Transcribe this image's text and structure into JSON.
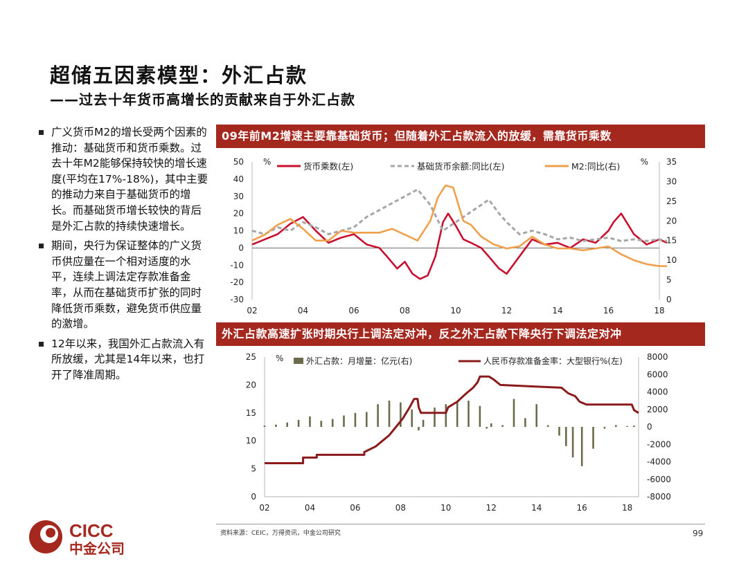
{
  "title": "超储五因素模型：外汇占款",
  "subtitle": "——过去十年货币高增长的贡献来自于外汇占款",
  "bullets": [
    "广义货币M2的增长受两个因素的推动：基础货币和货币乘数。过去十年M2能够保持较快的增长速度(平均在17%-18%)，其中主要的推动力来自于基础货币的增长。而基础货币增长较快的背后是外汇占款的持续快速增长。",
    "期间，央行为保证整体的广义货币供应量在一个相对适度的水平，连续上调法定存款准备金率，从而在基础货币扩张的同时降低货币乘数，避免货币供应量的激增。",
    "12年以来，我国外汇占款流入有所放缓，尤其是14年以来，也打开了降准周期。"
  ],
  "source": "资料来源：CEIC，万得资讯，中金公司研究",
  "page_number": "99",
  "logo": {
    "text_en": "CICC",
    "text_cn": "中金公司",
    "color": "#a5281f"
  },
  "colors": {
    "banner": "#a5281f",
    "series_red": "#c8102e",
    "series_gray": "#a6a6a6",
    "series_orange": "#f0a04b",
    "series_olive": "#6b6a4a",
    "series_darkred": "#8b1a1a"
  },
  "chart_data": [
    {
      "type": "line",
      "title": "09年前M2增速主要靠基础货币；但随着外汇占款流入的放缓，需靠货币乘数",
      "ylabel_left": "%",
      "ylabel_right": "%",
      "ylim_left": [
        -30,
        50
      ],
      "yticks_left": [
        50,
        40,
        30,
        20,
        10,
        0,
        -10,
        -20,
        -30
      ],
      "ylim_right": [
        0,
        35
      ],
      "yticks_right": [
        35,
        30,
        25,
        20,
        15,
        10,
        5,
        0
      ],
      "xlim": [
        2002,
        2018
      ],
      "xticks": [
        "02",
        "04",
        "06",
        "08",
        "10",
        "12",
        "14",
        "16",
        "18"
      ],
      "legend_position": "top",
      "series": [
        {
          "name": "货币乘数(左)",
          "axis": "left",
          "style": "solid",
          "x": [
            2002,
            2002.5,
            2003,
            2003.5,
            2004,
            2004.5,
            2005,
            2005.5,
            2006,
            2006.5,
            2007,
            2007.3,
            2007.7,
            2008,
            2008.3,
            2008.6,
            2008.9,
            2009.2,
            2009.5,
            2009.7,
            2010,
            2010.3,
            2010.6,
            2011,
            2011.3,
            2011.7,
            2012,
            2012.5,
            2013,
            2013.5,
            2014,
            2014.5,
            2015,
            2015.5,
            2016,
            2016.2,
            2016.5,
            2017,
            2017.5,
            2018,
            2018.3
          ],
          "y": [
            2,
            5,
            8,
            14,
            18,
            10,
            3,
            6,
            8,
            2,
            0,
            -5,
            -12,
            -8,
            -15,
            -18,
            -16,
            -5,
            15,
            20,
            13,
            5,
            3,
            0,
            -5,
            -12,
            -15,
            -5,
            5,
            2,
            3,
            0,
            5,
            3,
            10,
            15,
            20,
            8,
            2,
            5,
            3
          ]
        },
        {
          "name": "基础货币余额:同比(左)",
          "axis": "left",
          "style": "dashed",
          "x": [
            2002,
            2002.5,
            2003,
            2003.5,
            2004,
            2004.5,
            2005,
            2005.5,
            2006,
            2006.5,
            2007,
            2007.5,
            2008,
            2008.5,
            2009,
            2009.5,
            2010,
            2010.5,
            2011,
            2011.3,
            2011.7,
            2012,
            2012.5,
            2013,
            2013.5,
            2014,
            2014.5,
            2015,
            2015.5,
            2016,
            2016.5,
            2017,
            2017.5,
            2018,
            2018.3
          ],
          "y": [
            10,
            8,
            12,
            10,
            15,
            12,
            8,
            10,
            12,
            18,
            22,
            26,
            30,
            34,
            25,
            10,
            15,
            20,
            25,
            28,
            20,
            15,
            8,
            10,
            8,
            5,
            6,
            4,
            5,
            6,
            4,
            5,
            4,
            5,
            4
          ]
        },
        {
          "name": "M2:同比(右)",
          "axis": "right",
          "style": "solid",
          "x": [
            2002,
            2002.5,
            2003,
            2003.5,
            2004,
            2004.5,
            2005,
            2005.5,
            2006,
            2006.5,
            2007,
            2007.5,
            2008,
            2008.5,
            2009,
            2009.3,
            2009.6,
            2009.9,
            2010.3,
            2010.6,
            2011,
            2011.5,
            2012,
            2012.5,
            2013,
            2013.5,
            2014,
            2014.5,
            2015,
            2015.5,
            2016,
            2016.5,
            2017,
            2017.5,
            2018,
            2018.3
          ],
          "y": [
            15,
            16.5,
            19,
            20.5,
            18,
            15,
            15,
            17.5,
            17,
            17,
            17,
            18,
            16.5,
            15,
            20,
            26,
            29,
            28.5,
            20,
            19,
            16,
            14,
            13,
            13.5,
            16,
            14,
            13,
            13,
            12.5,
            13,
            13.5,
            11.5,
            10,
            9,
            8.5,
            8.5
          ]
        }
      ]
    },
    {
      "type": "bar+line",
      "title": "外汇占款高速扩张时期央行上调法定对冲，反之外汇占款下降央行下调法定对冲",
      "ylabel_left": "%",
      "ylim_left": [
        0,
        25
      ],
      "yticks_left": [
        25,
        20,
        15,
        10,
        5,
        0
      ],
      "ylim_right": [
        -8000,
        8000
      ],
      "yticks_right": [
        8000,
        6000,
        4000,
        2000,
        0,
        -2000,
        -4000,
        -6000,
        -8000
      ],
      "xlim": [
        2002,
        2018.5
      ],
      "xticks": [
        "02",
        "04",
        "06",
        "08",
        "10",
        "12",
        "14",
        "16",
        "18"
      ],
      "legend_position": "top",
      "series": [
        {
          "name": "外汇占款：月增量：亿元(右)",
          "axis": "right",
          "type": "bar",
          "x": [
            2002,
            2002.5,
            2003,
            2003.5,
            2004,
            2004.5,
            2005,
            2005.5,
            2006,
            2006.5,
            2007,
            2007.5,
            2008,
            2008.5,
            2008.8,
            2009,
            2009.5,
            2010,
            2010.5,
            2011,
            2011.5,
            2011.8,
            2012,
            2012.5,
            2013,
            2013.5,
            2014,
            2014.5,
            2015,
            2015.3,
            2015.6,
            2016,
            2016.5,
            2017,
            2017.5,
            2018,
            2018.3
          ],
          "y": [
            150,
            250,
            500,
            800,
            1200,
            700,
            900,
            1300,
            1600,
            1700,
            2600,
            3000,
            2800,
            2000,
            -400,
            800,
            2200,
            2600,
            2800,
            3000,
            2400,
            -200,
            400,
            200,
            3200,
            1000,
            2600,
            200,
            -1000,
            -2200,
            -3500,
            -4500,
            -2500,
            -200,
            200,
            100,
            150
          ]
        },
        {
          "name": "人民币存款准备金率：大型银行%(左)",
          "axis": "left",
          "type": "line",
          "step": true,
          "x": [
            2002,
            2003.7,
            2003.7,
            2004.3,
            2004.3,
            2006.4,
            2006.4,
            2006.9,
            2007.2,
            2007.5,
            2007.8,
            2008.1,
            2008.4,
            2008.6,
            2008.75,
            2008.8,
            2008.9,
            2009,
            2010,
            2010.1,
            2010.5,
            2010.9,
            2011.2,
            2011.4,
            2011.5,
            2011.9,
            2012.1,
            2012.4,
            2015.1,
            2015.4,
            2015.7,
            2015.9,
            2016.2,
            2018.2,
            2018.3,
            2018.5
          ],
          "y": [
            6,
            6,
            7,
            7,
            7.5,
            7.5,
            8,
            9,
            10,
            11,
            12.5,
            14,
            16,
            17.5,
            17.5,
            16,
            15,
            15,
            15,
            16,
            17,
            18.5,
            19.5,
            20.5,
            21.5,
            21.5,
            21,
            20,
            19.5,
            18.5,
            18,
            17,
            16.5,
            16.5,
            15.5,
            15
          ]
        }
      ]
    }
  ]
}
